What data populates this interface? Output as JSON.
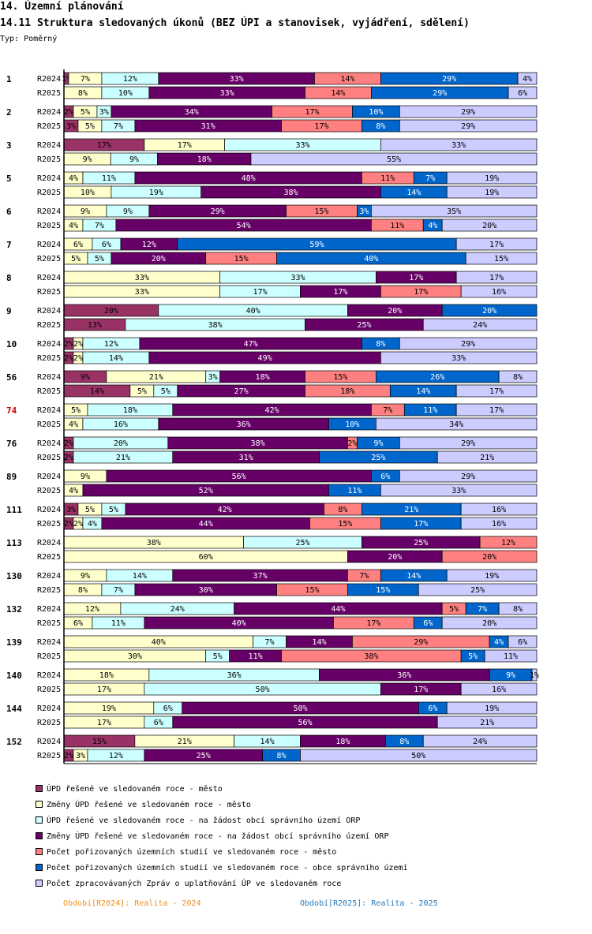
{
  "header": {
    "title": "14. Územní plánování",
    "subtitle": "14.11 Struktura sledovaných úkonů (BEZ ÚPI a stanovisek, vyjádření, sdělení)",
    "type_label": "Typ: Poměrný"
  },
  "colors": [
    "#993366",
    "#ffffcc",
    "#ccffff",
    "#660066",
    "#ff8080",
    "#0066cc",
    "#ccccff"
  ],
  "highlight_color": "#cc0000",
  "legend": [
    "ÚPD řešené ve sledovaném roce - město",
    "Změny ÚPD řešené ve sledovaném roce - město",
    "ÚPD řešené ve sledovaném roce - na žádost obcí správního území ORP",
    "Změny ÚPD řešené ve sledovaném roce - na žádost obcí správního území ORP",
    "Počet pořizovaných územních studií ve sledovaném roce - město",
    "Počet pořizovaných územních studií ve sledovaném roce - obce správního území",
    "Počet zpracovávaných Zpráv o uplatňování ÚP ve sledovaném roce"
  ],
  "periods": {
    "p2024": "Období[R2024]: Realita - 2024",
    "p2025": "Období[R2025]: Realita - 2025"
  },
  "chart_data": {
    "type": "stacked-bar-horizontal-100",
    "unit": "%",
    "series_names": [
      "ÚPD řešené ve sledovaném roce - město",
      "Změny ÚPD řešené ve sledovaném roce - město",
      "ÚPD řešené ve sledovaném roce - na žádost obcí správního území ORP",
      "Změny ÚPD řešené ve sledovaném roce - na žádost obcí správního území ORP",
      "Počet pořizovaných územních studií ve sledovaném roce - město",
      "Počet pořizovaných územních studií ve sledovaném roce - obce správního území",
      "Počet zpracovávaných Zpráv o uplatňování ÚP ve sledovaném roce"
    ],
    "groups": [
      {
        "label": "1",
        "highlight": false,
        "rows": [
          {
            "label": "R2024",
            "values": [
              1,
              7,
              12,
              33,
              14,
              29,
              4
            ]
          },
          {
            "label": "R2025",
            "values": [
              0,
              8,
              10,
              33,
              14,
              29,
              6
            ]
          }
        ]
      },
      {
        "label": "2",
        "highlight": false,
        "rows": [
          {
            "label": "R2024",
            "values": [
              2,
              5,
              3,
              34,
              17,
              10,
              29
            ]
          },
          {
            "label": "R2025",
            "values": [
              3,
              5,
              7,
              31,
              17,
              8,
              29
            ]
          }
        ]
      },
      {
        "label": "3",
        "highlight": false,
        "rows": [
          {
            "label": "R2024",
            "values": [
              17,
              17,
              33,
              0,
              0,
              0,
              33
            ]
          },
          {
            "label": "R2025",
            "values": [
              0,
              9,
              9,
              18,
              0,
              0,
              55
            ]
          }
        ]
      },
      {
        "label": "5",
        "highlight": false,
        "rows": [
          {
            "label": "R2024",
            "values": [
              0,
              4,
              11,
              48,
              11,
              7,
              19
            ]
          },
          {
            "label": "R2025",
            "values": [
              0,
              10,
              19,
              38,
              0,
              14,
              19
            ]
          }
        ]
      },
      {
        "label": "6",
        "highlight": false,
        "rows": [
          {
            "label": "R2024",
            "values": [
              0,
              9,
              9,
              29,
              15,
              3,
              35
            ]
          },
          {
            "label": "R2025",
            "values": [
              0,
              4,
              7,
              54,
              11,
              4,
              20
            ]
          }
        ]
      },
      {
        "label": "7",
        "highlight": false,
        "rows": [
          {
            "label": "R2024",
            "values": [
              0,
              6,
              6,
              12,
              0,
              59,
              17
            ]
          },
          {
            "label": "R2025",
            "values": [
              0,
              5,
              5,
              20,
              15,
              40,
              15
            ]
          }
        ]
      },
      {
        "label": "8",
        "highlight": false,
        "rows": [
          {
            "label": "R2024",
            "values": [
              0,
              33,
              33,
              17,
              0,
              0,
              17
            ]
          },
          {
            "label": "R2025",
            "values": [
              0,
              33,
              17,
              17,
              17,
              0,
              16
            ]
          }
        ]
      },
      {
        "label": "9",
        "highlight": false,
        "rows": [
          {
            "label": "R2024",
            "values": [
              20,
              0,
              40,
              20,
              0,
              20,
              0
            ]
          },
          {
            "label": "R2025",
            "values": [
              13,
              0,
              38,
              25,
              0,
              0,
              24
            ]
          }
        ]
      },
      {
        "label": "10",
        "highlight": false,
        "rows": [
          {
            "label": "R2024",
            "values": [
              2,
              2,
              12,
              47,
              0,
              8,
              29
            ]
          },
          {
            "label": "R2025",
            "values": [
              2,
              2,
              14,
              49,
              0,
              0,
              33
            ]
          }
        ]
      },
      {
        "label": "56",
        "highlight": false,
        "rows": [
          {
            "label": "R2024",
            "values": [
              9,
              21,
              3,
              18,
              15,
              26,
              8
            ]
          },
          {
            "label": "R2025",
            "values": [
              14,
              5,
              5,
              27,
              18,
              14,
              17
            ]
          }
        ]
      },
      {
        "label": "74",
        "highlight": true,
        "rows": [
          {
            "label": "R2024",
            "values": [
              0,
              5,
              18,
              42,
              7,
              11,
              17
            ]
          },
          {
            "label": "R2025",
            "values": [
              0,
              4,
              16,
              36,
              0,
              10,
              34
            ]
          }
        ]
      },
      {
        "label": "76",
        "highlight": false,
        "rows": [
          {
            "label": "R2024",
            "values": [
              2,
              0,
              20,
              38,
              2,
              9,
              29
            ]
          },
          {
            "label": "R2025",
            "values": [
              2,
              0,
              21,
              31,
              0,
              25,
              21
            ]
          }
        ]
      },
      {
        "label": "89",
        "highlight": false,
        "rows": [
          {
            "label": "R2024",
            "values": [
              0,
              9,
              0,
              56,
              0,
              6,
              29
            ]
          },
          {
            "label": "R2025",
            "values": [
              0,
              4,
              0,
              52,
              0,
              11,
              33
            ]
          }
        ]
      },
      {
        "label": "111",
        "highlight": false,
        "rows": [
          {
            "label": "R2024",
            "values": [
              3,
              5,
              5,
              42,
              8,
              21,
              16
            ]
          },
          {
            "label": "R2025",
            "values": [
              2,
              2,
              4,
              44,
              15,
              17,
              16
            ]
          }
        ]
      },
      {
        "label": "113",
        "highlight": false,
        "rows": [
          {
            "label": "R2024",
            "values": [
              0,
              38,
              25,
              25,
              12,
              0,
              0
            ]
          },
          {
            "label": "R2025",
            "values": [
              0,
              60,
              0,
              20,
              20,
              0,
              0
            ]
          }
        ]
      },
      {
        "label": "130",
        "highlight": false,
        "rows": [
          {
            "label": "R2024",
            "values": [
              0,
              9,
              14,
              37,
              7,
              14,
              19
            ]
          },
          {
            "label": "R2025",
            "values": [
              0,
              8,
              7,
              30,
              15,
              15,
              25
            ]
          }
        ]
      },
      {
        "label": "132",
        "highlight": false,
        "rows": [
          {
            "label": "R2024",
            "values": [
              0,
              12,
              24,
              44,
              5,
              7,
              8
            ]
          },
          {
            "label": "R2025",
            "values": [
              0,
              6,
              11,
              40,
              17,
              6,
              20
            ]
          }
        ]
      },
      {
        "label": "139",
        "highlight": false,
        "rows": [
          {
            "label": "R2024",
            "values": [
              0,
              40,
              7,
              14,
              29,
              4,
              6
            ]
          },
          {
            "label": "R2025",
            "values": [
              0,
              30,
              5,
              11,
              38,
              5,
              11
            ]
          }
        ]
      },
      {
        "label": "140",
        "highlight": false,
        "rows": [
          {
            "label": "R2024",
            "values": [
              0,
              18,
              36,
              36,
              0,
              9,
              1
            ]
          },
          {
            "label": "R2025",
            "values": [
              0,
              17,
              50,
              17,
              0,
              0,
              16
            ]
          }
        ]
      },
      {
        "label": "144",
        "highlight": false,
        "rows": [
          {
            "label": "R2024",
            "values": [
              0,
              19,
              6,
              50,
              0,
              6,
              19
            ]
          },
          {
            "label": "R2025",
            "values": [
              0,
              17,
              6,
              56,
              0,
              0,
              21
            ]
          }
        ]
      },
      {
        "label": "152",
        "highlight": false,
        "rows": [
          {
            "label": "R2024",
            "values": [
              15,
              21,
              14,
              18,
              0,
              8,
              24
            ]
          },
          {
            "label": "R2025",
            "values": [
              2,
              3,
              12,
              25,
              0,
              8,
              50
            ]
          }
        ]
      }
    ]
  }
}
